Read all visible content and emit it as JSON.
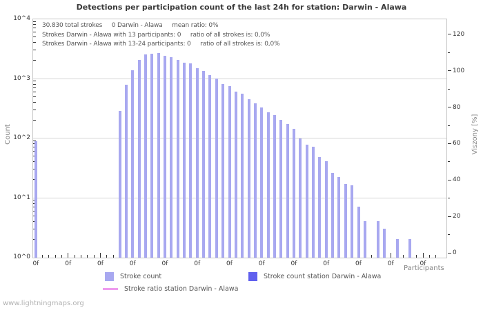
{
  "title": "Detections per participation count of the last 24h for station: Darwin - Alawa",
  "watermark": "www.lightningmaps.org",
  "annotation_lines": [
    "30.830 total strokes     0 Darwin - Alawa     mean ratio: 0%",
    "Strokes Darwin - Alawa with 13 participants: 0     ratio of all strokes is: 0,0%",
    "Strokes Darwin - Alawa with 13-24 participants: 0     ratio of all strokes is: 0,0%"
  ],
  "axes": {
    "left": {
      "label": "Count",
      "scale": "log10",
      "ticks": [
        "10^4",
        "10^3",
        "10^2",
        "10^1",
        "10^0"
      ]
    },
    "right": {
      "label": "Viszony [%]",
      "scale": "linear",
      "ticks_asc": [
        "0",
        "20",
        "40",
        "60",
        "80",
        "100",
        "120"
      ]
    },
    "x": {
      "label": "Participants",
      "major_tick_label": "0f",
      "major_tick_count": 13,
      "minor_tick_count": 63
    }
  },
  "legend": [
    {
      "swatch": "square",
      "color": "#a8a8f0",
      "label": "Stroke count"
    },
    {
      "swatch": "square",
      "color": "#6060ee",
      "label": "Stroke count station Darwin - Alawa"
    },
    {
      "swatch": "line",
      "color": "#ee9cee",
      "label": "Stroke ratio station Darwin - Alawa"
    }
  ],
  "colors": {
    "bar": "#a8a8f0",
    "station_bar": "#6060ee",
    "ratio_line": "#ee9cee",
    "grid": "#d4d4d4",
    "plot_border": "#c6c6c6",
    "tick": "#333333",
    "text": "#555555",
    "title": "#3a3a3a",
    "watermark": "#b2b2b2"
  },
  "chart_data": {
    "type": "bar",
    "title": "Detections per participation count of the last 24h for station: Darwin - Alawa",
    "xlabel": "Participants",
    "ylabel": "Count",
    "y2label": "Viszony [%]",
    "yscale": "log10",
    "ylim": [
      1,
      10000
    ],
    "y2lim": [
      0,
      130
    ],
    "grid": "horizontal decade gridlines at 10^1, 10^2, 10^3",
    "legend_position": "bottom",
    "total_strokes_shown": "30.830",
    "station_stroke_count_shown": 0,
    "mean_ratio_percent_shown": 0,
    "bars_format": "[participant_slot_index, stroke_count]",
    "bars": [
      [
        0,
        87
      ],
      [
        13,
        280
      ],
      [
        14,
        770
      ],
      [
        15,
        1370
      ],
      [
        16,
        2040
      ],
      [
        17,
        2480
      ],
      [
        18,
        2550
      ],
      [
        19,
        2620
      ],
      [
        20,
        2380
      ],
      [
        21,
        2270
      ],
      [
        22,
        2040
      ],
      [
        23,
        1820
      ],
      [
        24,
        1780
      ],
      [
        25,
        1460
      ],
      [
        26,
        1330
      ],
      [
        27,
        1140
      ],
      [
        28,
        980
      ],
      [
        29,
        800
      ],
      [
        30,
        730
      ],
      [
        31,
        590
      ],
      [
        32,
        550
      ],
      [
        33,
        450
      ],
      [
        34,
        375
      ],
      [
        35,
        320
      ],
      [
        36,
        270
      ],
      [
        37,
        240
      ],
      [
        38,
        200
      ],
      [
        39,
        170
      ],
      [
        40,
        140
      ],
      [
        41,
        97
      ],
      [
        42,
        77
      ],
      [
        43,
        71
      ],
      [
        44,
        47
      ],
      [
        45,
        40
      ],
      [
        46,
        26
      ],
      [
        47,
        22
      ],
      [
        48,
        17
      ],
      [
        49,
        16
      ],
      [
        50,
        7
      ],
      [
        51,
        4
      ],
      [
        53,
        4
      ],
      [
        54,
        3
      ],
      [
        56,
        2
      ],
      [
        58,
        2
      ]
    ]
  }
}
